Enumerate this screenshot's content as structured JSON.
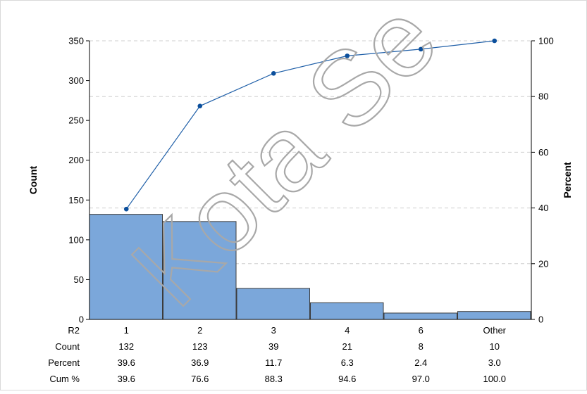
{
  "chart_data": {
    "type": "bar",
    "subtype": "pareto",
    "title": "",
    "xlabel": "",
    "ylabel": "Count",
    "y2label": "Percent",
    "ylim": [
      0,
      350
    ],
    "y2lim": [
      0,
      100
    ],
    "yticks": [
      "0",
      "50",
      "100",
      "150",
      "200",
      "250",
      "300",
      "350"
    ],
    "y2ticks": [
      "0",
      "20",
      "40",
      "60",
      "80",
      "100"
    ],
    "categories": [
      "1",
      "2",
      "3",
      "4",
      "6",
      "Other"
    ],
    "series": [
      {
        "name": "Count",
        "type": "bar",
        "values": [
          132,
          123,
          39,
          21,
          8,
          10
        ],
        "color": "#7ba7da"
      },
      {
        "name": "Cum %",
        "type": "line",
        "axis": "right",
        "values": [
          39.6,
          76.6,
          88.3,
          94.6,
          97.0,
          100.0
        ],
        "color": "#1f5fa8"
      }
    ],
    "grid": true,
    "table": {
      "header": "R2",
      "rows": [
        {
          "label": "Count",
          "values": [
            "132",
            "123",
            "39",
            "21",
            "8",
            "10"
          ]
        },
        {
          "label": "Percent",
          "values": [
            "39.6",
            "36.9",
            "11.7",
            "6.3",
            "2.4",
            "3.0"
          ]
        },
        {
          "label": "Cum %",
          "values": [
            "39.6",
            "76.6",
            "88.3",
            "94.6",
            "97.0",
            "100.0"
          ]
        }
      ]
    }
  },
  "watermark": {
    "text": "Kota Se"
  },
  "colors": {
    "bar_fill": "#7ba7da",
    "bar_stroke": "#3c3c3c",
    "line": "#1f5fa8",
    "marker": "#0b4f9c",
    "grid": "#cfcfcf"
  }
}
